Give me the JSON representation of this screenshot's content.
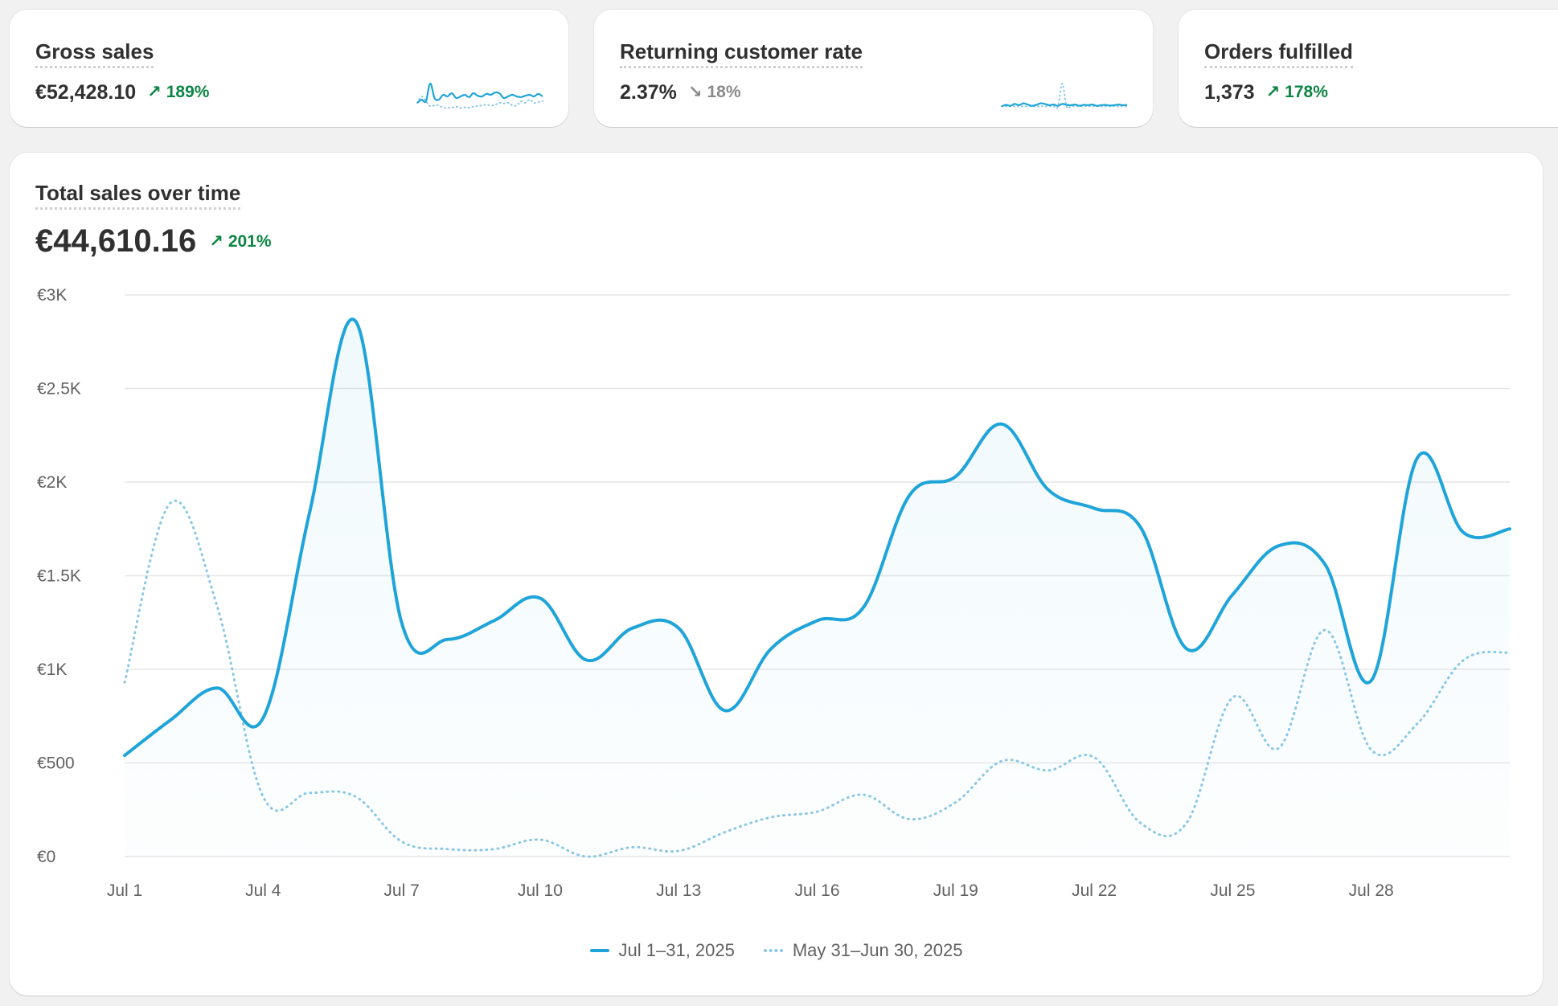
{
  "metrics": [
    {
      "title": "Gross sales",
      "value": "€52,428.10",
      "delta": "189%",
      "direction": "up"
    },
    {
      "title": "Returning customer rate",
      "value": "2.37%",
      "delta": "18%",
      "direction": "down"
    },
    {
      "title": "Orders fulfilled",
      "value": "1,373",
      "delta": "178%",
      "direction": "up"
    }
  ],
  "sales_chart": {
    "title": "Total sales over time",
    "total": "€44,610.16",
    "delta": "201%",
    "direction": "up"
  },
  "colors": {
    "primary": "#1fa4d9",
    "comparison": "#8ac7e6",
    "positive": "#0c8544",
    "neutral": "#8a8a8a"
  },
  "chart_data": {
    "type": "line",
    "title": "Total sales over time",
    "y_ticks": [
      "€0",
      "€500",
      "€1K",
      "€1.5K",
      "€2K",
      "€2.5K",
      "€3K"
    ],
    "y_tick_values": [
      0,
      500,
      1000,
      1500,
      2000,
      2500,
      3000
    ],
    "ylim": [
      0,
      3000
    ],
    "x_ticks": [
      "Jul 1",
      "Jul 4",
      "Jul 7",
      "Jul 10",
      "Jul 13",
      "Jul 16",
      "Jul 19",
      "Jul 22",
      "Jul 25",
      "Jul 28"
    ],
    "x_tick_days": [
      1,
      4,
      7,
      10,
      13,
      16,
      19,
      22,
      25,
      28
    ],
    "grid": true,
    "legend": "bottom-center",
    "series": [
      {
        "name": "Jul 1–31, 2025",
        "style": "solid",
        "x": [
          1,
          2,
          3,
          4,
          5,
          6,
          7,
          8,
          9,
          10,
          11,
          12,
          13,
          14,
          15,
          16,
          17,
          18,
          19,
          20,
          21,
          22,
          23,
          24,
          25,
          26,
          27,
          28,
          29,
          30,
          31
        ],
        "values": [
          540,
          730,
          900,
          740,
          1830,
          2860,
          1250,
          1160,
          1260,
          1380,
          1050,
          1220,
          1220,
          780,
          1110,
          1260,
          1330,
          1930,
          2030,
          2310,
          1960,
          1860,
          1760,
          1110,
          1400,
          1660,
          1560,
          940,
          2130,
          1730,
          1750
        ]
      },
      {
        "name": "May 31–Jun 30, 2025",
        "style": "dotted",
        "x": [
          1,
          2,
          3,
          4,
          5,
          6,
          7,
          8,
          9,
          10,
          11,
          12,
          13,
          14,
          15,
          16,
          17,
          18,
          19,
          20,
          21,
          22,
          23,
          24,
          25,
          26,
          27,
          28,
          29,
          30,
          31
        ],
        "values": [
          930,
          1890,
          1340,
          320,
          340,
          320,
          80,
          40,
          40,
          90,
          0,
          50,
          30,
          130,
          210,
          240,
          330,
          200,
          290,
          510,
          460,
          530,
          180,
          180,
          850,
          580,
          1210,
          570,
          710,
          1050,
          1090
        ]
      }
    ]
  },
  "sparklines": {
    "gross_sales": {
      "current": [
        30,
        40,
        35,
        90,
        45,
        40,
        55,
        50,
        60,
        45,
        50,
        55,
        48,
        60,
        52,
        50,
        58,
        55,
        62,
        60,
        45,
        50,
        55,
        50,
        48,
        52,
        55,
        50,
        58,
        50
      ],
      "previous": [
        30,
        50,
        35,
        20,
        22,
        22,
        15,
        15,
        15,
        18,
        14,
        16,
        15,
        18,
        20,
        22,
        24,
        22,
        24,
        30,
        28,
        30,
        22,
        22,
        35,
        30,
        40,
        30,
        32,
        36
      ]
    },
    "returning_rate": {
      "current": [
        20,
        25,
        22,
        28,
        24,
        30,
        26,
        22,
        25,
        30,
        28,
        24,
        26,
        22,
        28,
        25,
        24,
        26,
        22,
        25,
        24,
        26,
        22,
        24,
        25,
        23,
        24,
        26,
        24,
        25
      ],
      "previous": [
        20,
        20,
        20,
        20,
        20,
        20,
        20,
        20,
        20,
        20,
        20,
        20,
        20,
        20,
        95,
        20,
        20,
        20,
        20,
        20,
        20,
        20,
        20,
        20,
        20,
        20,
        20,
        20,
        20,
        20
      ]
    }
  }
}
